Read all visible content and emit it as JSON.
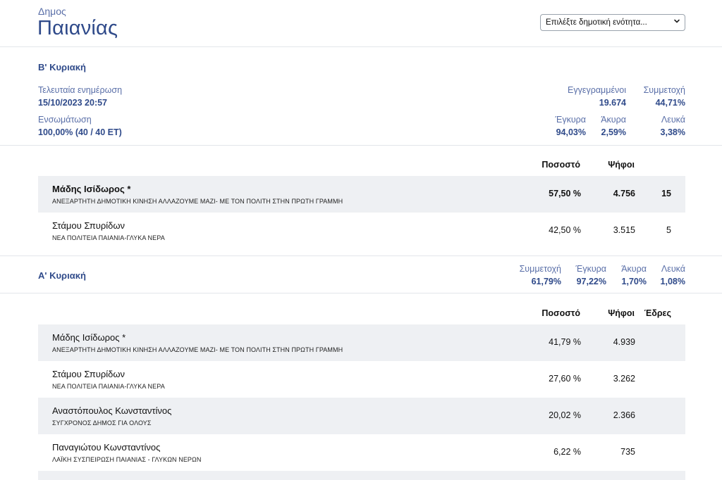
{
  "header": {
    "muni_label": "Δημος",
    "muni_name": "Παιανίας",
    "select_value": "Επιλέξτε δημοτική ενότητα..."
  },
  "round_b": {
    "title": "Β' Κυριακή",
    "last_update_label": "Τελευταία ενημέρωση",
    "last_update_value": "15/10/2023 20:57",
    "integration_label": "Ενσωμάτωση",
    "integration_value": "100,00% (40 / 40 ΕΤ)",
    "registered_label": "Εγγεγραμμένοι",
    "registered_value": "19.674",
    "turnout_label": "Συμμετοχή",
    "turnout_value": "44,71%",
    "valid_label": "Έγκυρα",
    "valid_value": "94,03%",
    "invalid_label": "Άκυρα",
    "invalid_value": "2,59%",
    "blank_label": "Λευκά",
    "blank_value": "3,38%",
    "table": {
      "col_pct": "Ποσοστό",
      "col_votes": "Ψήφοι",
      "rows": [
        {
          "name": "Μάδης Ισίδωρος *",
          "party": "ΑΝΕΞΑΡΤΗΤΗ ΔΗΜΟΤΙΚΗ ΚΙΝΗΣΗ ΑΛΛΑΖΟΥΜΕ ΜΑΖΙ- ΜΕ ΤΟΝ ΠΟΛΙΤΗ ΣΤΗΝ ΠΡΩΤΗ ΓΡΑΜΜΗ",
          "pct": "57,50 %",
          "votes": "4.756",
          "seats": "15"
        },
        {
          "name": "Στάμου Σπυρίδων",
          "party": "ΝΕΑ ΠΟΛΙΤΕΙΑ ΠΑΙΑΝΙΑ-ΓΛΥΚΑ ΝΕΡΑ",
          "pct": "42,50 %",
          "votes": "3.515",
          "seats": "5"
        }
      ]
    }
  },
  "round_a": {
    "title": "Α' Κυριακή",
    "turnout_label": "Συμμετοχή",
    "turnout_value": "61,79%",
    "valid_label": "Έγκυρα",
    "valid_value": "97,22%",
    "invalid_label": "Άκυρα",
    "invalid_value": "1,70%",
    "blank_label": "Λευκά",
    "blank_value": "1,08%",
    "table": {
      "col_pct": "Ποσοστό",
      "col_votes": "Ψήφοι",
      "col_seats": "Έδρες",
      "rows": [
        {
          "name": "Μάδης Ισίδωρος *",
          "party": "ΑΝΕΞΑΡΤΗΤΗ ΔΗΜΟΤΙΚΗ ΚΙΝΗΣΗ ΑΛΛΑΖΟΥΜΕ ΜΑΖΙ- ΜΕ ΤΟΝ ΠΟΛΙΤΗ ΣΤΗΝ ΠΡΩΤΗ ΓΡΑΜΜΗ",
          "pct": "41,79 %",
          "votes": "4.939"
        },
        {
          "name": "Στάμου Σπυρίδων",
          "party": "ΝΕΑ ΠΟΛΙΤΕΙΑ ΠΑΙΑΝΙΑ-ΓΛΥΚΑ ΝΕΡΑ",
          "pct": "27,60 %",
          "votes": "3.262"
        },
        {
          "name": "Αναστόπουλος Κωνσταντίνος",
          "party": "ΣΥΓΧΡΟΝΟΣ ΔΗΜΟΣ ΓΙΑ ΟΛΟΥΣ",
          "pct": "20,02 %",
          "votes": "2.366"
        },
        {
          "name": "Παναγιώτου Κωνσταντίνος",
          "party": "ΛΑΪΚΗ ΣΥΣΠΕΙΡΩΣΗ ΠΑΙΑΝΙΑΣ - ΓΛΥΚΩΝ ΝΕΡΩΝ",
          "pct": "6,22 %",
          "votes": "735"
        }
      ]
    }
  },
  "colors": {
    "accent": "#2f4a8a",
    "label": "#5a6fa8",
    "row_shade": "#eef0f3",
    "divider": "#e3e6ea"
  }
}
